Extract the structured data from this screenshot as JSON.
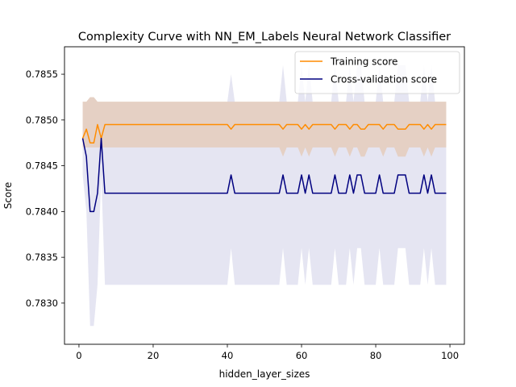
{
  "chart_data": {
    "type": "line",
    "title": "Complexity Curve with NN_EM_Labels Neural Network Classifier",
    "xlabel": "hidden_layer_sizes",
    "ylabel": "Score",
    "xlim": [
      -3.9,
      103.9
    ],
    "ylim": [
      0.78255,
      0.7858
    ],
    "xticks": [
      0,
      20,
      40,
      60,
      80,
      100
    ],
    "yticks": [
      0.783,
      0.7835,
      0.784,
      0.7845,
      0.785,
      0.7855
    ],
    "xtick_labels": [
      "0",
      "20",
      "40",
      "60",
      "80",
      "100"
    ],
    "ytick_labels": [
      "0.7830",
      "0.7835",
      "0.7840",
      "0.7845",
      "0.7850",
      "0.7855"
    ],
    "grid": false,
    "legend_position": "top-right",
    "x_start": 1,
    "series": [
      {
        "name": "Training score",
        "color": "#ff8c00",
        "band_color": "#ff8c00",
        "band_opacity": 0.2,
        "values": [
          0.7848,
          0.7849,
          0.78475,
          0.78475,
          0.78495,
          0.7848,
          0.78495,
          0.78495,
          0.78495,
          0.78495,
          0.78495,
          0.78495,
          0.78495,
          0.78495,
          0.78495,
          0.78495,
          0.78495,
          0.78495,
          0.78495,
          0.78495,
          0.78495,
          0.78495,
          0.78495,
          0.78495,
          0.78495,
          0.78495,
          0.78495,
          0.78495,
          0.78495,
          0.78495,
          0.78495,
          0.78495,
          0.78495,
          0.78495,
          0.78495,
          0.78495,
          0.78495,
          0.78495,
          0.78495,
          0.78495,
          0.7849,
          0.78495,
          0.78495,
          0.78495,
          0.78495,
          0.78495,
          0.78495,
          0.78495,
          0.78495,
          0.78495,
          0.78495,
          0.78495,
          0.78495,
          0.78495,
          0.7849,
          0.78495,
          0.78495,
          0.78495,
          0.78495,
          0.7849,
          0.78495,
          0.7849,
          0.78495,
          0.78495,
          0.78495,
          0.78495,
          0.78495,
          0.78495,
          0.7849,
          0.78495,
          0.78495,
          0.78495,
          0.7849,
          0.78495,
          0.78495,
          0.7849,
          0.7849,
          0.78495,
          0.78495,
          0.78495,
          0.78495,
          0.7849,
          0.78495,
          0.78495,
          0.78495,
          0.7849,
          0.7849,
          0.7849,
          0.78495,
          0.78495,
          0.78495,
          0.78495,
          0.7849,
          0.78495,
          0.7849,
          0.78495,
          0.78495,
          0.78495,
          0.78495
        ],
        "band_upper": [
          0.7852,
          0.7852,
          0.78525,
          0.78525,
          0.7852,
          0.7852,
          0.7852,
          0.7852,
          0.7852,
          0.7852,
          0.7852,
          0.7852,
          0.7852,
          0.7852,
          0.7852,
          0.7852,
          0.7852,
          0.7852,
          0.7852,
          0.7852,
          0.7852,
          0.7852,
          0.7852,
          0.7852,
          0.7852,
          0.7852,
          0.7852,
          0.7852,
          0.7852,
          0.7852,
          0.7852,
          0.7852,
          0.7852,
          0.7852,
          0.7852,
          0.7852,
          0.7852,
          0.7852,
          0.7852,
          0.7852,
          0.7852,
          0.7852,
          0.7852,
          0.7852,
          0.7852,
          0.7852,
          0.7852,
          0.7852,
          0.7852,
          0.7852,
          0.7852,
          0.7852,
          0.7852,
          0.7852,
          0.7852,
          0.7852,
          0.7852,
          0.7852,
          0.7852,
          0.7852,
          0.7852,
          0.7852,
          0.7852,
          0.7852,
          0.7852,
          0.7852,
          0.7852,
          0.7852,
          0.7852,
          0.7852,
          0.7852,
          0.7852,
          0.7852,
          0.7852,
          0.7852,
          0.7852,
          0.7852,
          0.7852,
          0.7852,
          0.7852,
          0.7852,
          0.7852,
          0.7852,
          0.7852,
          0.7852,
          0.7852,
          0.7852,
          0.7852,
          0.7852,
          0.7852,
          0.7852,
          0.7852,
          0.7852,
          0.7852,
          0.7852,
          0.7852,
          0.7852,
          0.7852,
          0.7852
        ],
        "band_lower": [
          0.7847,
          0.7847,
          0.7847,
          0.7847,
          0.7847,
          0.7847,
          0.7847,
          0.7847,
          0.7847,
          0.7847,
          0.7847,
          0.7847,
          0.7847,
          0.7847,
          0.7847,
          0.7847,
          0.7847,
          0.7847,
          0.7847,
          0.7847,
          0.7847,
          0.7847,
          0.7847,
          0.7847,
          0.7847,
          0.7847,
          0.7847,
          0.7847,
          0.7847,
          0.7847,
          0.7847,
          0.7847,
          0.7847,
          0.7847,
          0.7847,
          0.7847,
          0.7847,
          0.7847,
          0.7847,
          0.7847,
          0.7847,
          0.7847,
          0.7847,
          0.7847,
          0.7847,
          0.7847,
          0.7847,
          0.7847,
          0.7847,
          0.7847,
          0.7847,
          0.7847,
          0.7847,
          0.7847,
          0.7846,
          0.7847,
          0.7847,
          0.7847,
          0.7847,
          0.7846,
          0.7847,
          0.7846,
          0.7847,
          0.7847,
          0.7847,
          0.7847,
          0.7847,
          0.7847,
          0.7846,
          0.7847,
          0.7847,
          0.7847,
          0.7846,
          0.7847,
          0.7847,
          0.7846,
          0.7846,
          0.7847,
          0.7847,
          0.7847,
          0.7847,
          0.7846,
          0.7847,
          0.7847,
          0.7847,
          0.7846,
          0.7846,
          0.7846,
          0.7847,
          0.7847,
          0.7847,
          0.7847,
          0.7846,
          0.7847,
          0.7846,
          0.7847,
          0.7847,
          0.7847,
          0.7847
        ]
      },
      {
        "name": "Cross-validation score",
        "color": "#000080",
        "band_color": "#000080",
        "band_opacity": 0.1,
        "values": [
          0.7848,
          0.7846,
          0.784,
          0.784,
          0.7842,
          0.7848,
          0.7842,
          0.7842,
          0.7842,
          0.7842,
          0.7842,
          0.7842,
          0.7842,
          0.7842,
          0.7842,
          0.7842,
          0.7842,
          0.7842,
          0.7842,
          0.7842,
          0.7842,
          0.7842,
          0.7842,
          0.7842,
          0.7842,
          0.7842,
          0.7842,
          0.7842,
          0.7842,
          0.7842,
          0.7842,
          0.7842,
          0.7842,
          0.7842,
          0.7842,
          0.7842,
          0.7842,
          0.7842,
          0.7842,
          0.7842,
          0.7844,
          0.7842,
          0.7842,
          0.7842,
          0.7842,
          0.7842,
          0.7842,
          0.7842,
          0.7842,
          0.7842,
          0.7842,
          0.7842,
          0.7842,
          0.7842,
          0.7844,
          0.7842,
          0.7842,
          0.7842,
          0.7842,
          0.7844,
          0.7842,
          0.7844,
          0.7842,
          0.7842,
          0.7842,
          0.7842,
          0.7842,
          0.7842,
          0.7844,
          0.7842,
          0.7842,
          0.7842,
          0.7844,
          0.7842,
          0.7844,
          0.7844,
          0.7842,
          0.7842,
          0.7842,
          0.7842,
          0.7844,
          0.7842,
          0.7842,
          0.7842,
          0.7842,
          0.7844,
          0.7844,
          0.7844,
          0.7842,
          0.7842,
          0.7842,
          0.7842,
          0.7844,
          0.7842,
          0.7844,
          0.7842,
          0.7842,
          0.7842,
          0.7842
        ],
        "band_upper": [
          0.7852,
          0.7852,
          0.78525,
          0.78525,
          0.7852,
          0.7852,
          0.7852,
          0.7852,
          0.7852,
          0.7852,
          0.7852,
          0.7852,
          0.7852,
          0.7852,
          0.7852,
          0.7852,
          0.7852,
          0.7852,
          0.7852,
          0.7852,
          0.7852,
          0.7852,
          0.7852,
          0.7852,
          0.7852,
          0.7852,
          0.7852,
          0.7852,
          0.7852,
          0.7852,
          0.7852,
          0.7852,
          0.7852,
          0.7852,
          0.7852,
          0.7852,
          0.7852,
          0.7852,
          0.7852,
          0.7852,
          0.7855,
          0.7852,
          0.7852,
          0.7852,
          0.7852,
          0.7852,
          0.7852,
          0.7852,
          0.7852,
          0.7852,
          0.7852,
          0.7852,
          0.7852,
          0.7852,
          0.7856,
          0.7852,
          0.7852,
          0.7852,
          0.7852,
          0.7856,
          0.7852,
          0.7856,
          0.7852,
          0.7852,
          0.7852,
          0.7852,
          0.7852,
          0.7852,
          0.7856,
          0.7852,
          0.7852,
          0.7852,
          0.7856,
          0.7852,
          0.7856,
          0.7856,
          0.7852,
          0.7852,
          0.7852,
          0.7852,
          0.7856,
          0.7852,
          0.7852,
          0.7852,
          0.7852,
          0.7856,
          0.7856,
          0.7856,
          0.7852,
          0.7852,
          0.7852,
          0.7852,
          0.7856,
          0.7852,
          0.7856,
          0.7852,
          0.7852,
          0.7852,
          0.7852
        ],
        "band_lower": [
          0.7844,
          0.784,
          0.78275,
          0.78275,
          0.7832,
          0.7844,
          0.7832,
          0.7832,
          0.7832,
          0.7832,
          0.7832,
          0.7832,
          0.7832,
          0.7832,
          0.7832,
          0.7832,
          0.7832,
          0.7832,
          0.7832,
          0.7832,
          0.7832,
          0.7832,
          0.7832,
          0.7832,
          0.7832,
          0.7832,
          0.7832,
          0.7832,
          0.7832,
          0.7832,
          0.7832,
          0.7832,
          0.7832,
          0.7832,
          0.7832,
          0.7832,
          0.7832,
          0.7832,
          0.7832,
          0.7832,
          0.7836,
          0.7832,
          0.7832,
          0.7832,
          0.7832,
          0.7832,
          0.7832,
          0.7832,
          0.7832,
          0.7832,
          0.7832,
          0.7832,
          0.7832,
          0.7832,
          0.7836,
          0.7832,
          0.7832,
          0.7832,
          0.7832,
          0.7836,
          0.7832,
          0.7836,
          0.7832,
          0.7832,
          0.7832,
          0.7832,
          0.7832,
          0.7832,
          0.7836,
          0.7832,
          0.7832,
          0.7832,
          0.7836,
          0.7832,
          0.7836,
          0.7836,
          0.7832,
          0.7832,
          0.7832,
          0.7832,
          0.7836,
          0.7832,
          0.7832,
          0.7832,
          0.7832,
          0.7836,
          0.7836,
          0.7836,
          0.7832,
          0.7832,
          0.7832,
          0.7832,
          0.7836,
          0.7832,
          0.7836,
          0.7832,
          0.7832,
          0.7832,
          0.7832
        ]
      }
    ]
  }
}
